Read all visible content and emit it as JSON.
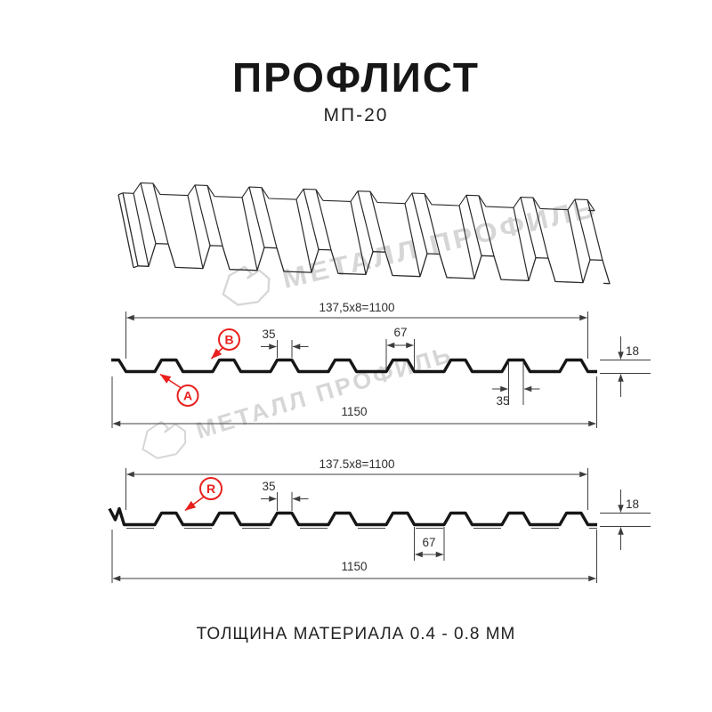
{
  "header": {
    "title": "ПРОФЛИСТ",
    "subtitle": "МП-20"
  },
  "watermark": {
    "text": "МЕТАЛЛ ПРОФИЛЬ"
  },
  "profile_top": {
    "pitch": "137,5x8=1100",
    "crest_top": "35",
    "crest_base": "67",
    "height": "18",
    "crest_top_2": "35",
    "full_width": "1150",
    "label_a": "A",
    "label_b": "B"
  },
  "profile_bottom": {
    "pitch": "137.5x8=1100",
    "crest_top": "35",
    "valley": "67",
    "height": "18",
    "full_width": "1150",
    "label_r": "R"
  },
  "footer": {
    "note": "ТОЛЩИНА МАТЕРИАЛА 0.4 - 0.8 ММ"
  },
  "colors": {
    "red": "#e8211e",
    "line": "#1a1a1a",
    "dim": "#3d3d3d",
    "watermark": "#d6d6d6"
  }
}
